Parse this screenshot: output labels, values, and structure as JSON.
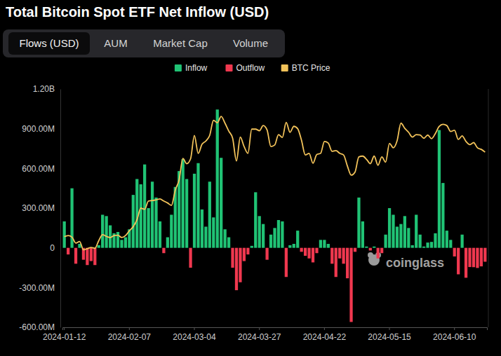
{
  "chart_data": {
    "type": "bar",
    "title": "Total Bitcoin Spot ETF Net Inflow (USD)",
    "tabs": [
      "Flows (USD)",
      "AUM",
      "Market Cap",
      "Volume"
    ],
    "annotation": "coinglass",
    "categories": [
      "2024-01-12",
      null,
      null,
      null,
      null,
      null,
      null,
      null,
      null,
      null,
      null,
      null,
      null,
      null,
      null,
      null,
      null,
      "2024-02-07",
      null,
      null,
      null,
      null,
      null,
      null,
      null,
      null,
      null,
      null,
      null,
      null,
      null,
      null,
      null,
      null,
      "2024-03-04",
      null,
      null,
      null,
      null,
      null,
      null,
      null,
      null,
      null,
      null,
      null,
      null,
      null,
      null,
      null,
      null,
      "2024-03-27",
      null,
      null,
      null,
      null,
      null,
      null,
      null,
      null,
      null,
      null,
      null,
      null,
      null,
      null,
      null,
      null,
      "2024-04-22",
      null,
      null,
      null,
      null,
      null,
      null,
      null,
      null,
      null,
      null,
      null,
      null,
      null,
      null,
      null,
      null,
      "2024-05-15",
      null,
      null,
      null,
      null,
      null,
      null,
      null,
      null,
      null,
      null,
      null,
      null,
      null,
      null,
      null,
      null,
      "2024-06-10",
      null,
      null,
      null,
      null,
      null,
      null,
      null,
      null
    ],
    "series": [
      {
        "name": "Inflow",
        "type": "bar",
        "color": "#20c375",
        "values": [
          200000000,
          null,
          450000000,
          null,
          30000000,
          null,
          null,
          null,
          null,
          20000000,
          250000000,
          240000000,
          170000000,
          110000000,
          120000000,
          60000000,
          80000000,
          140000000,
          400000000,
          520000000,
          480000000,
          630000000,
          300000000,
          500000000,
          380000000,
          200000000,
          null,
          80000000,
          250000000,
          460000000,
          580000000,
          670000000,
          520000000,
          null,
          560000000,
          640000000,
          290000000,
          160000000,
          500000000,
          230000000,
          1045000000,
          680000000,
          140000000,
          80000000,
          null,
          null,
          null,
          null,
          null,
          15000000,
          420000000,
          240000000,
          180000000,
          null,
          100000000,
          150000000,
          210000000,
          200000000,
          null,
          20000000,
          30000000,
          130000000,
          null,
          null,
          null,
          null,
          null,
          60000000,
          60000000,
          30000000,
          null,
          null,
          null,
          null,
          null,
          null,
          null,
          380000000,
          200000000,
          10000000,
          null,
          10000000,
          null,
          null,
          100000000,
          300000000,
          250000000,
          160000000,
          180000000,
          240000000,
          150000000,
          20000000,
          250000000,
          100000000,
          10000000,
          40000000,
          45000000,
          110000000,
          890000000,
          490000000,
          130000000,
          60000000,
          null,
          null,
          100000000,
          null,
          null,
          null,
          null,
          null,
          null
        ]
      },
      {
        "name": "Outflow",
        "type": "bar",
        "color": "#f0384f",
        "values": [
          null,
          -50000000,
          null,
          -120000000,
          null,
          -90000000,
          -130000000,
          -100000000,
          -130000000,
          null,
          null,
          null,
          null,
          null,
          null,
          null,
          null,
          null,
          null,
          null,
          null,
          null,
          null,
          null,
          null,
          null,
          -40000000,
          null,
          null,
          null,
          null,
          null,
          null,
          -150000000,
          null,
          null,
          null,
          null,
          null,
          null,
          null,
          null,
          null,
          null,
          -150000000,
          -320000000,
          -260000000,
          -100000000,
          -50000000,
          null,
          null,
          null,
          null,
          -90000000,
          null,
          null,
          null,
          null,
          -220000000,
          null,
          null,
          null,
          -30000000,
          -60000000,
          -80000000,
          -110000000,
          -40000000,
          null,
          null,
          null,
          -120000000,
          -220000000,
          -80000000,
          -120000000,
          -230000000,
          -560000000,
          -30000000,
          null,
          null,
          null,
          -20000000,
          null,
          -80000000,
          -40000000,
          null,
          null,
          null,
          null,
          null,
          null,
          null,
          null,
          null,
          null,
          null,
          null,
          null,
          null,
          null,
          null,
          null,
          null,
          -65000000,
          -200000000,
          null,
          -226000000,
          -145000000,
          -146000000,
          -152000000,
          -140000000,
          -105000000
        ]
      },
      {
        "name": "BTC Price",
        "type": "line",
        "axis": "y2",
        "color": "#f3c35a",
        "values": [
          42800,
          43100,
          42700,
          41200,
          41600,
          39500,
          39800,
          40100,
          39900,
          41800,
          43300,
          42900,
          42600,
          43100,
          43200,
          42600,
          43100,
          44300,
          45300,
          47100,
          50000,
          49700,
          51800,
          51900,
          52100,
          52300,
          51800,
          51300,
          50700,
          54500,
          57100,
          62500,
          61200,
          62400,
          68300,
          63800,
          66100,
          66900,
          68300,
          72100,
          71500,
          73100,
          71400,
          69400,
          67600,
          61900,
          67900,
          65500,
          63800,
          69900,
          69900,
          69500,
          70800,
          69700,
          65500,
          65900,
          68500,
          67800,
          71600,
          69100,
          70600,
          70000,
          67100,
          63400,
          63800,
          61300,
          63500,
          63800,
          66800,
          66400,
          64300,
          64500,
          63800,
          63400,
          60600,
          58300,
          59100,
          62900,
          63100,
          62300,
          61200,
          63100,
          60800,
          62900,
          61600,
          66300,
          65200,
          67000,
          71400,
          70100,
          69100,
          67900,
          68500,
          68400,
          67600,
          68400,
          67500,
          68800,
          70600,
          71100,
          70800,
          69300,
          69600,
          67300,
          68200,
          66800,
          66000,
          66500,
          65200,
          64800,
          64100
        ]
      }
    ],
    "ylim": [
      -600000000,
      1200000000
    ],
    "yticks": [
      {
        "value": -600000000,
        "label": "-600.00M"
      },
      {
        "value": -300000000,
        "label": "-300.00M"
      },
      0,
      {
        "value": 300000000,
        "label": "300.00M"
      },
      {
        "value": 600000000,
        "label": "600.00M"
      },
      {
        "value": 900000000,
        "label": "900.00M"
      },
      {
        "value": 1200000000,
        "label": "1.20B"
      }
    ],
    "y2lim": [
      20000,
      80000
    ],
    "grid": false,
    "legend": "top"
  }
}
